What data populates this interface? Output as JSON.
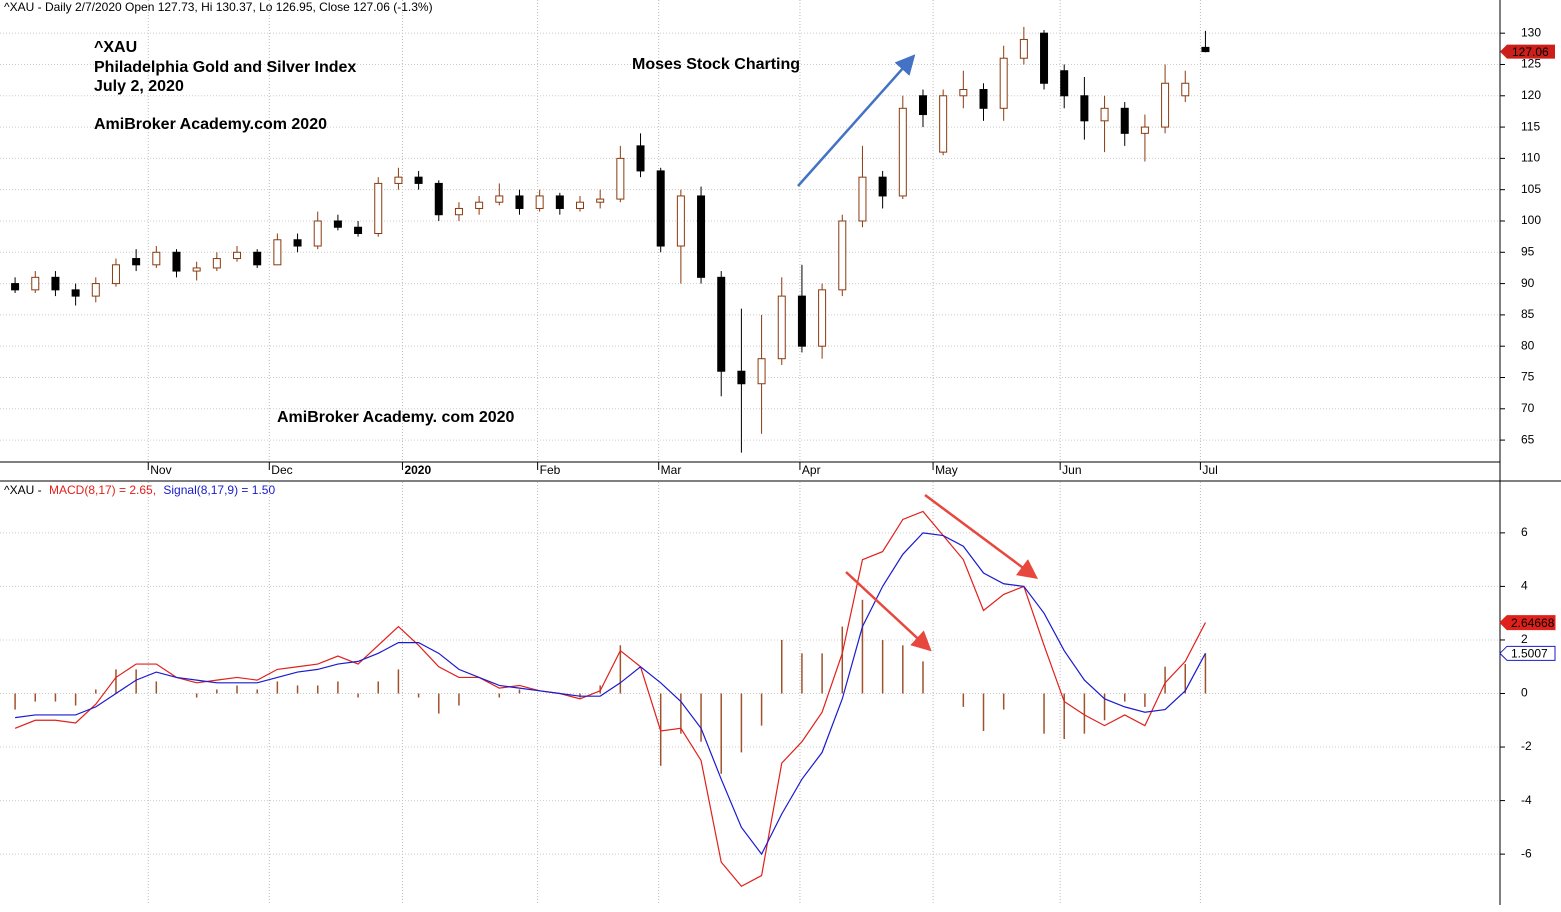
{
  "chart_data": [
    {
      "type": "candlestick",
      "title": "^XAU - Daily 2/7/2020 Open 127.73, Hi 130.37, Lo 126.95, Close 127.06 (-1.3%)",
      "annotations": [
        "^XAU",
        "Philadelphia Gold and Silver Index",
        "July 2, 2020",
        "AmiBroker Academy.com  2020",
        "Moses Stock Charting",
        "AmiBroker Academy. com 2020"
      ],
      "up_color": "#8b3a0f",
      "down_color": "#000000",
      "annotation_color": "#e8473e",
      "xlim": [
        -0.5,
        73.6
      ],
      "xticks": [
        {
          "value": 6.6,
          "label": "Nov"
        },
        {
          "value": 12.6,
          "label": "Dec"
        },
        {
          "value": 19.2,
          "label": "2020"
        },
        {
          "value": 25.9,
          "label": "Feb"
        },
        {
          "value": 31.9,
          "label": "Mar"
        },
        {
          "value": 38.9,
          "label": "Apr"
        },
        {
          "value": 45.5,
          "label": "May"
        },
        {
          "value": 51.8,
          "label": "Jun"
        },
        {
          "value": 58.75,
          "label": "Jul"
        }
      ],
      "ylim": [
        61.5,
        135.3
      ],
      "yticks": [
        65,
        70,
        75,
        80,
        85,
        90,
        95,
        100,
        105,
        110,
        115,
        120,
        125,
        130
      ],
      "grid": true,
      "last_price": 127.06,
      "last_price_color": "#cc1f1a",
      "open": [
        90,
        89,
        91,
        89,
        88,
        90,
        94,
        93,
        95,
        92,
        92.5,
        94,
        95,
        93,
        97,
        96,
        100,
        99,
        98,
        106,
        107,
        106,
        101,
        102,
        103,
        104,
        102,
        104,
        102,
        103,
        103.5,
        112,
        108,
        96,
        104,
        91,
        76,
        74,
        78,
        88,
        80,
        89,
        100,
        107,
        104,
        120,
        111,
        120,
        121,
        118,
        126,
        130,
        124,
        120,
        116,
        118,
        114,
        115,
        120,
        127.73
      ],
      "high": [
        91,
        92,
        92,
        90,
        91,
        94,
        95.5,
        96,
        95.5,
        93.5,
        95,
        96,
        95.5,
        98,
        98,
        101.5,
        101,
        100,
        107,
        108.5,
        108,
        106.5,
        103,
        104,
        106,
        105,
        105,
        104.5,
        104,
        105,
        112,
        114,
        108.5,
        105,
        105.5,
        92,
        86,
        85,
        91,
        93,
        90,
        101,
        112,
        108,
        120,
        121,
        121,
        124,
        122,
        128,
        131,
        130.5,
        125,
        123,
        120,
        119,
        117,
        125,
        124,
        130.37
      ],
      "low": [
        88.5,
        88.5,
        88,
        86.5,
        87,
        89.5,
        92,
        92.5,
        91,
        90.5,
        92,
        93.5,
        92.5,
        93,
        95,
        95.5,
        98.5,
        97.5,
        97.5,
        105,
        105,
        100,
        100,
        101,
        102.5,
        101,
        101.5,
        101,
        101.5,
        102,
        103,
        107,
        95,
        90,
        90,
        72,
        63,
        66,
        77,
        79,
        78,
        88,
        99,
        102,
        103.5,
        115,
        110.5,
        118,
        116,
        116,
        125,
        121,
        118,
        113,
        111,
        112,
        109.5,
        114,
        119,
        126.95
      ],
      "close": [
        89,
        91,
        89,
        88,
        90,
        93,
        93,
        95,
        92,
        92.5,
        94,
        95,
        93,
        97,
        96,
        100,
        99,
        98,
        106,
        107,
        106,
        101,
        102,
        103,
        104,
        102,
        104,
        102,
        103,
        103.5,
        110,
        108,
        96,
        104,
        91,
        76,
        74,
        78,
        88,
        80,
        89,
        100,
        107,
        104,
        118,
        117,
        120,
        121,
        118,
        126,
        129,
        122,
        120,
        116,
        118,
        114,
        115,
        122,
        122,
        127.06
      ]
    },
    {
      "type": "macd",
      "title_parts": [
        "^XAU -",
        "MACD(8,17) = 2.65,",
        "Signal(8,17,9) = 1.50"
      ],
      "xlim": [
        -0.5,
        73.6
      ],
      "ylim": [
        -7.9,
        7.9
      ],
      "yticks": [
        -6,
        -4,
        -2,
        0,
        2,
        4,
        6
      ],
      "histogram_color": "#a0522d",
      "histogram": [
        -0.6,
        -0.3,
        -0.3,
        -0.45,
        0.15,
        0.9,
        0.9,
        0.45,
        0,
        -0.15,
        0.15,
        0.3,
        0.15,
        0.45,
        0.3,
        0.3,
        0.45,
        -0.15,
        0.45,
        0.9,
        -0.15,
        -0.75,
        -0.45,
        0,
        -0.15,
        0.15,
        0,
        0,
        -0.15,
        0.3,
        1.8,
        0,
        -2.7,
        -1.5,
        -1.8,
        -3.0,
        -2.2,
        -1.2,
        2.0,
        1.5,
        1.5,
        2.5,
        3.5,
        2.0,
        1.8,
        1.2,
        0,
        -0.5,
        -1.4,
        -0.6,
        0,
        -1.5,
        -1.7,
        -1.5,
        -1.0,
        -0.3,
        -0.5,
        1.0,
        1.1,
        1.5
      ],
      "series": [
        {
          "name": "MACD",
          "color": "#e0201b",
          "last_value": 2.64668,
          "values": [
            -1.3,
            -1.0,
            -1.0,
            -1.1,
            -0.4,
            0.6,
            1.1,
            1.1,
            0.6,
            0.4,
            0.5,
            0.6,
            0.5,
            0.9,
            1.0,
            1.1,
            1.4,
            1.1,
            1.8,
            2.5,
            1.8,
            1.0,
            0.6,
            0.6,
            0.2,
            0.3,
            0.1,
            0,
            -0.2,
            0.1,
            1.6,
            1.0,
            -1.4,
            -1.3,
            -2.5,
            -6.3,
            -7.2,
            -6.8,
            -2.6,
            -1.8,
            -0.7,
            1.5,
            5.0,
            5.3,
            6.5,
            6.8,
            5.9,
            5.0,
            3.1,
            3.7,
            4.0,
            1.8,
            -0.3,
            -0.8,
            -1.2,
            -0.8,
            -1.2,
            0.4,
            1.2,
            2.65
          ]
        },
        {
          "name": "Signal",
          "color": "#1a1ad0",
          "last_value": 1.5007,
          "values": [
            -0.9,
            -0.8,
            -0.8,
            -0.8,
            -0.5,
            0,
            0.5,
            0.8,
            0.6,
            0.5,
            0.4,
            0.4,
            0.4,
            0.6,
            0.8,
            0.9,
            1.1,
            1.2,
            1.5,
            1.9,
            1.9,
            1.5,
            0.9,
            0.6,
            0.3,
            0.2,
            0.1,
            0,
            -0.1,
            -0.1,
            0.4,
            1.0,
            0.4,
            -0.3,
            -1.3,
            -3.2,
            -5.0,
            -6.0,
            -4.5,
            -3.2,
            -2.2,
            -0.2,
            2.5,
            4.0,
            5.2,
            6.0,
            5.9,
            5.5,
            4.5,
            4.1,
            4.0,
            3.0,
            1.6,
            0.5,
            -0.2,
            -0.5,
            -0.7,
            -0.6,
            0.1,
            1.5
          ]
        }
      ]
    }
  ]
}
